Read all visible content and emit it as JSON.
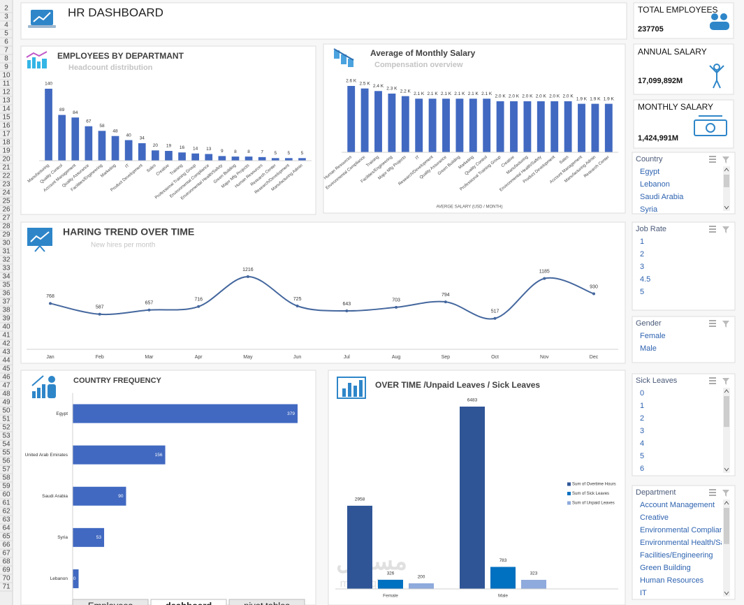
{
  "header": {
    "title": "HR DASHBOARD"
  },
  "row_numbers": [
    2,
    3,
    4,
    5,
    6,
    7,
    8,
    9,
    10,
    11,
    12,
    13,
    14,
    15,
    16,
    17,
    18,
    19,
    20,
    21,
    22,
    23,
    24,
    25,
    26,
    27,
    28,
    29,
    30,
    31,
    32,
    33,
    34,
    35,
    36,
    37,
    38,
    39,
    40,
    41,
    42,
    43,
    44,
    45,
    46,
    47,
    48,
    49,
    50,
    51,
    52,
    53,
    54,
    55,
    56,
    57,
    58,
    59,
    60,
    61,
    62,
    63,
    64,
    65,
    66,
    67,
    68,
    69,
    70,
    71
  ],
  "kpis": [
    {
      "label": "TOTAL EMPLOYEES",
      "value": 237705
    },
    {
      "label": "ANNUAL SALARY",
      "value": "17,099,892M"
    },
    {
      "label": "MONTHLY SALARY",
      "value": "1,424,991M"
    }
  ],
  "slicers": [
    {
      "title": "Country",
      "items": [
        "Egypt",
        "Lebanon",
        "Saudi Arabia",
        "Syria"
      ]
    },
    {
      "title": "Job Rate",
      "items": [
        1,
        2,
        3,
        4.5,
        5
      ]
    },
    {
      "title": "Gender",
      "items": [
        "Female",
        "Male"
      ]
    },
    {
      "title": "Sick Leaves",
      "items": [
        0,
        1,
        2,
        3,
        4,
        5,
        6
      ]
    },
    {
      "title": "Department",
      "items": [
        "Account Management",
        "Creative",
        "Environmental Compliance",
        "Environmental Health/Safety",
        "Facilities/Engineering",
        "Green Building",
        "Human Resources",
        "IT"
      ]
    }
  ],
  "sheet_tabs": [
    "Employees",
    "dashboard",
    "pivot tables"
  ],
  "watermark": [
    "مستقل",
    "mostaql.com"
  ],
  "chart_data": [
    {
      "type": "bar",
      "title": "EMPLOYEES BY DEPARTMANT",
      "subtitle": "Headcount distribution",
      "categories": [
        "Manufacturing",
        "Quality Control",
        "Account Management",
        "Quality Assurance",
        "Facilities/Engineering",
        "Marketing",
        "IT",
        "Product Development",
        "Sales",
        "Creative",
        "Training",
        "Professional Training Group",
        "Environmental Compliance",
        "Environmental Health/Safety",
        "Green Building",
        "Major Mfg Projects",
        "Human Resources",
        "Research Center",
        "Research/Development",
        "Manufacturing Admin"
      ],
      "values": [
        140,
        89,
        84,
        67,
        58,
        48,
        40,
        34,
        20,
        19,
        16,
        14,
        13,
        9,
        8,
        8,
        7,
        5,
        5,
        5
      ],
      "color": "#4169c1"
    },
    {
      "type": "bar",
      "title": "Average of Monthly Salary",
      "subtitle": "Compensation overview",
      "x_label": "AVERGE SALARY (USD / MONTH)",
      "categories": [
        "Human Resources",
        "Environmental Compliance",
        "Training",
        "Facilities/Engineering",
        "Major Mfg Projects",
        "IT",
        "Research/Development",
        "Quality Assurance",
        "Green Building",
        "Marketing",
        "Quality Control",
        "Professional Training Group",
        "Creative",
        "Manufacturing",
        "Environmental Health/Safety",
        "Product Development",
        "Sales",
        "Account Management",
        "Manufacturing Admin",
        "Research Center"
      ],
      "values": [
        2600,
        2500,
        2400,
        2300,
        2200,
        2100,
        2100,
        2100,
        2100,
        2100,
        2100,
        2000,
        2000,
        2000,
        2000,
        2000,
        2000,
        1900,
        1900,
        1900
      ],
      "value_labels": [
        "2.6 K",
        "2.5 K",
        "2.4 K",
        "2.3 K",
        "2.2 K",
        "2.1 K",
        "2.1 K",
        "2.1 K",
        "2.1 K",
        "2.1 K",
        "2.1 K",
        "2.0 K",
        "2.0 K",
        "2.0 K",
        "2.0 K",
        "2.0 K",
        "2.0 K",
        "1.9 K",
        "1.9 K",
        "1.9 K"
      ],
      "color": "#4169c1"
    },
    {
      "type": "line",
      "title": "HARING TREND OVER TIME",
      "subtitle": "New hires per month",
      "categories": [
        "Jan",
        "Feb",
        "Mar",
        "Apr",
        "May",
        "Jun",
        "Jul",
        "Aug",
        "Sep",
        "Oct",
        "Nov",
        "Dec"
      ],
      "values": [
        768,
        587,
        657,
        716,
        1216,
        725,
        643,
        703,
        794,
        517,
        1185,
        930
      ],
      "color": "#44679e"
    },
    {
      "type": "hbar",
      "title": "COUNTRY FREQUENCY",
      "categories": [
        "Egypt",
        "United Arab Emirates",
        "Saudi Arabia",
        "Syria",
        "Lebanon"
      ],
      "values": [
        379,
        156,
        90,
        53,
        10
      ],
      "color": "#4169c1"
    },
    {
      "type": "grouped_bar",
      "title": "OVER TIME /Unpaid Leaves / Sick Leaves",
      "legend": "right",
      "categories": [
        "Female",
        "Male"
      ],
      "series": [
        {
          "name": "Sum of Overtime Hours",
          "color": "#2f5597",
          "values": [
            2958,
            6483
          ]
        },
        {
          "name": "Sum of Sick Leaves",
          "color": "#0070c0",
          "values": [
            326,
            783
          ]
        },
        {
          "name": "Sum of Unpaid Leaves",
          "color": "#8faadc",
          "values": [
            200,
            323
          ]
        }
      ]
    }
  ]
}
